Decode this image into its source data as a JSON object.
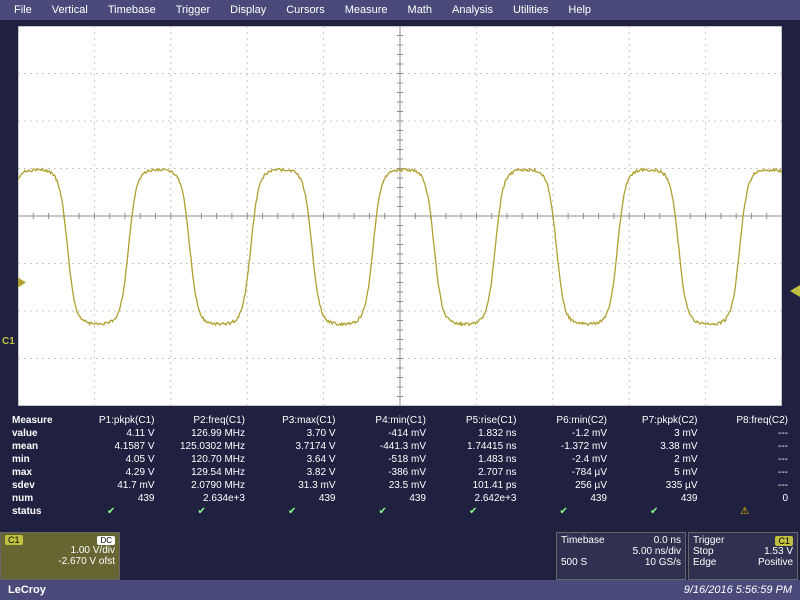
{
  "menu": [
    "File",
    "Vertical",
    "Timebase",
    "Trigger",
    "Display",
    "Cursors",
    "Measure",
    "Math",
    "Analysis",
    "Utilities",
    "Help"
  ],
  "channel_label": "C1",
  "grid": {
    "bg": "#ffffff",
    "minor": "#e8e8e8",
    "major": "#c8c8c8",
    "axis": "#909090",
    "trace": "#b0a030",
    "h_divs": 10,
    "v_divs": 8
  },
  "waveform": {
    "periods": 6.25,
    "top_div": -1.0,
    "bottom_div": 2.3,
    "zero_div": 1.4,
    "noise": 0.06
  },
  "measure": {
    "headers": [
      "Measure",
      "P1:pkpk(C1)",
      "P2:freq(C1)",
      "P3:max(C1)",
      "P4:min(C1)",
      "P5:rise(C1)",
      "P6:min(C2)",
      "P7:pkpk(C2)",
      "P8:freq(C2)"
    ],
    "rows": [
      [
        "value",
        "4.11 V",
        "126.99 MHz",
        "3.70 V",
        "-414 mV",
        "1.832 ns",
        "-1.2 mV",
        "3 mV",
        "---"
      ],
      [
        "mean",
        "4.1587 V",
        "125.0302 MHz",
        "3.7174 V",
        "-441.3 mV",
        "1.74415 ns",
        "-1.372 mV",
        "3.38 mV",
        "---"
      ],
      [
        "min",
        "4.05 V",
        "120.70 MHz",
        "3.64 V",
        "-518 mV",
        "1.483 ns",
        "-2.4 mV",
        "2 mV",
        "---"
      ],
      [
        "max",
        "4.29 V",
        "129.54 MHz",
        "3.82 V",
        "-386 mV",
        "2.707 ns",
        "-784 µV",
        "5 mV",
        "---"
      ],
      [
        "sdev",
        "41.7 mV",
        "2.0790 MHz",
        "31.3 mV",
        "23.5 mV",
        "101.41 ps",
        "256 µV",
        "335 µV",
        "---"
      ],
      [
        "num",
        "439",
        "2.634e+3",
        "439",
        "439",
        "2.642e+3",
        "439",
        "439",
        "0"
      ]
    ],
    "status": [
      "status",
      "check",
      "check",
      "check",
      "check",
      "check",
      "check",
      "check",
      "warn"
    ]
  },
  "ch1_panel": {
    "label": "C1",
    "coupling": "DC",
    "scale": "1.00 V/div",
    "offset": "-2.670 V ofst"
  },
  "timebase_panel": {
    "title": "Timebase",
    "delay": "0.0 ns",
    "scale": "5.00 ns/div",
    "rec": "500 S",
    "rate": "10 GS/s"
  },
  "trigger_panel": {
    "title": "Trigger",
    "src": "C1",
    "mode": "Stop",
    "level": "1.53 V",
    "type": "Edge",
    "slope": "Positive"
  },
  "footer": {
    "brand": "LeCroy",
    "timestamp": "9/16/2016 5:56:59 PM"
  }
}
